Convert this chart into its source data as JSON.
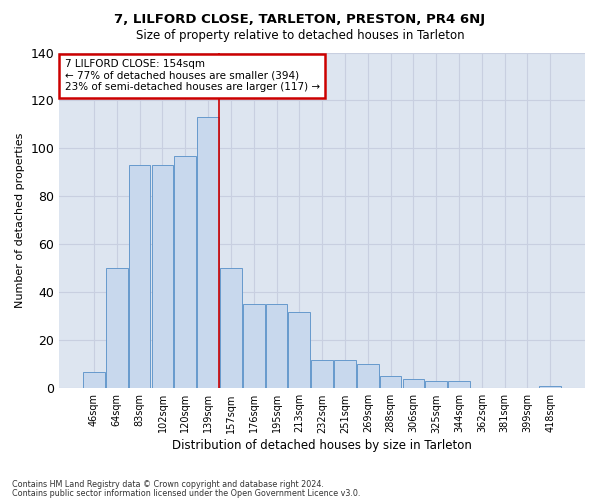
{
  "title": "7, LILFORD CLOSE, TARLETON, PRESTON, PR4 6NJ",
  "subtitle": "Size of property relative to detached houses in Tarleton",
  "xlabel": "Distribution of detached houses by size in Tarleton",
  "ylabel": "Number of detached properties",
  "bar_labels": [
    "46sqm",
    "64sqm",
    "83sqm",
    "102sqm",
    "120sqm",
    "139sqm",
    "157sqm",
    "176sqm",
    "195sqm",
    "213sqm",
    "232sqm",
    "251sqm",
    "269sqm",
    "288sqm",
    "306sqm",
    "325sqm",
    "344sqm",
    "362sqm",
    "381sqm",
    "399sqm",
    "418sqm"
  ],
  "bar_values": [
    7,
    50,
    93,
    93,
    97,
    113,
    50,
    35,
    35,
    32,
    12,
    12,
    10,
    5,
    4,
    3,
    3,
    0,
    0,
    0,
    1
  ],
  "bar_color": "#c8d8ed",
  "bar_edge_color": "#6699cc",
  "vline_index": 6,
  "marker_label": "7 LILFORD CLOSE: 154sqm",
  "annotation_line1": "← 77% of detached houses are smaller (394)",
  "annotation_line2": "23% of semi-detached houses are larger (117) →",
  "annotation_box_color": "#ffffff",
  "annotation_box_edge": "#cc0000",
  "vline_color": "#cc0000",
  "ylim": [
    0,
    140
  ],
  "yticks": [
    0,
    20,
    40,
    60,
    80,
    100,
    120,
    140
  ],
  "grid_color": "#c8cfe0",
  "bg_color": "#dde5f0",
  "footer1": "Contains HM Land Registry data © Crown copyright and database right 2024.",
  "footer2": "Contains public sector information licensed under the Open Government Licence v3.0."
}
